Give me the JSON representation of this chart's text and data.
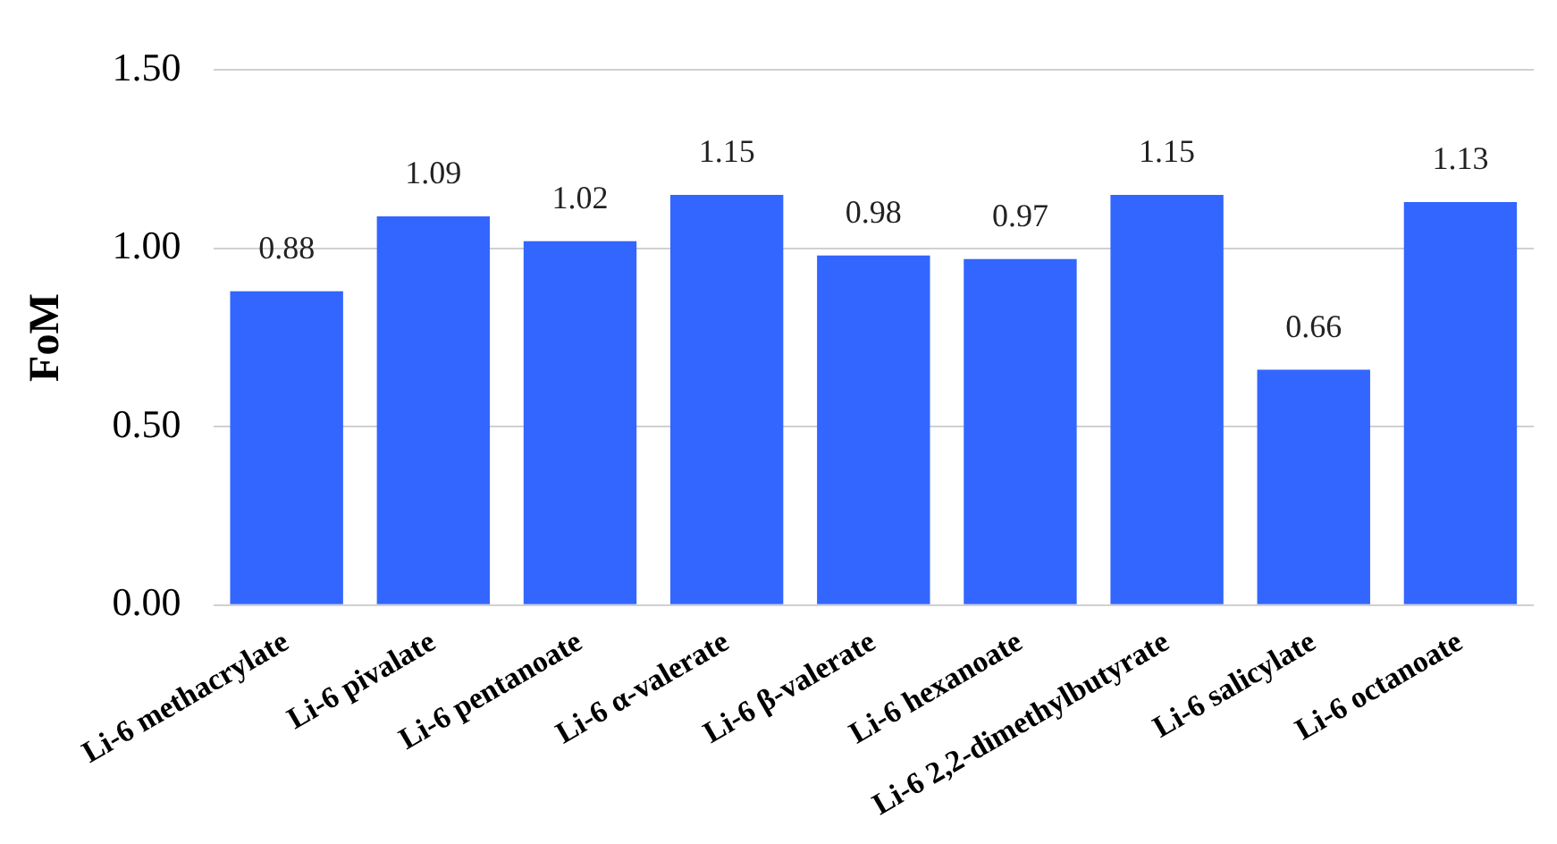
{
  "chart_data": {
    "type": "bar",
    "ylabel": "FoM",
    "categories": [
      "Li-6 methacrylate",
      "Li-6 pivalate",
      "Li-6 pentanoate",
      "Li-6 α-valerate",
      "Li-6 β-valerate",
      "Li-6 hexanoate",
      "Li-6 2,2-dimethylbutyrate",
      "Li-6 salicylate",
      "Li-6 octanoate"
    ],
    "values": [
      0.88,
      1.09,
      1.02,
      1.15,
      0.98,
      0.97,
      1.15,
      0.66,
      1.13
    ],
    "color": "#3366ff",
    "ylim": [
      0,
      1.5
    ],
    "yticks": [
      {
        "value": 0,
        "label": "0.00"
      },
      {
        "value": 0.5,
        "label": "0.50"
      },
      {
        "value": 1,
        "label": "1.00"
      },
      {
        "value": 1.5,
        "label": "1.50"
      }
    ],
    "grid": "y",
    "data_labels": true,
    "legend": false
  }
}
